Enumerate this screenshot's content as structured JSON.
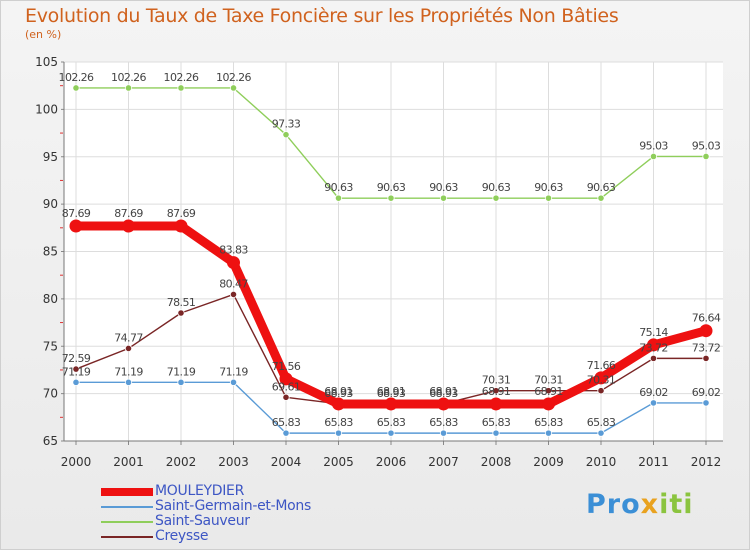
{
  "chart_data": {
    "type": "line",
    "title": "Evolution du Taux de Taxe Foncière sur les Propriétés Non Bâties",
    "ylabel": "(en %)",
    "ylim": [
      65,
      105
    ],
    "yticks": [
      "65",
      "70",
      "75",
      "80",
      "85",
      "90",
      "95",
      "100",
      "105"
    ],
    "categories": [
      "2000",
      "2001",
      "2002",
      "2003",
      "2004",
      "2005",
      "2006",
      "2007",
      "2008",
      "2009",
      "2010",
      "2011",
      "2012"
    ],
    "series": [
      {
        "name": "Saint-Sauveur",
        "color": "#8fce5b",
        "values": [
          102.26,
          102.26,
          102.26,
          102.26,
          97.33,
          90.63,
          90.63,
          90.63,
          90.63,
          90.63,
          90.63,
          95.03,
          95.03
        ],
        "labels": [
          "102.26",
          "102.26",
          "102.26",
          "102.26",
          "97.33",
          "90.63",
          "90.63",
          "90.63",
          "90.63",
          "90.63",
          "90.63",
          "95.03",
          "95.03"
        ]
      },
      {
        "name": "Saint-Germain-et-Mons",
        "color": "#5a9bd6",
        "values": [
          71.19,
          71.19,
          71.19,
          71.19,
          65.83,
          65.83,
          65.83,
          65.83,
          65.83,
          65.83,
          65.83,
          69.02,
          69.02
        ],
        "labels": [
          "71.19",
          "71.19",
          "71.19",
          "71.19",
          "65.83",
          "65.83",
          "65.83",
          "65.83",
          "65.83",
          "65.83",
          "65.83",
          "69.02",
          "69.02"
        ]
      },
      {
        "name": "Creysse",
        "color": "#7a2626",
        "values": [
          72.59,
          74.77,
          78.51,
          80.47,
          69.61,
          68.93,
          68.93,
          68.93,
          70.31,
          70.31,
          70.31,
          73.72,
          73.72
        ],
        "labels": [
          "72.59",
          "74.77",
          "78.51",
          "80.47",
          "69.61",
          "68.93",
          "68.93",
          "68.93",
          "70.31",
          "70.31",
          "70.31",
          "73.72",
          "73.72"
        ]
      },
      {
        "name": "MOULEYDIER",
        "color": "#ee1111",
        "values": [
          87.69,
          87.69,
          87.69,
          83.83,
          71.56,
          68.91,
          68.91,
          68.91,
          68.91,
          68.91,
          71.66,
          75.14,
          76.64
        ],
        "labels": [
          "87.69",
          "87.69",
          "87.69",
          "83.83",
          "71.56",
          "68.91",
          "68.91",
          "68.91",
          "68.91",
          "68.91",
          "71.66",
          "75.14",
          "76.64"
        ]
      }
    ],
    "legend_order": [
      "MOULEYDIER",
      "Saint-Germain-et-Mons",
      "Saint-Sauveur",
      "Creysse"
    ]
  },
  "logo": {
    "p1": "Pro",
    "p2": "x",
    "p3": "iti"
  }
}
